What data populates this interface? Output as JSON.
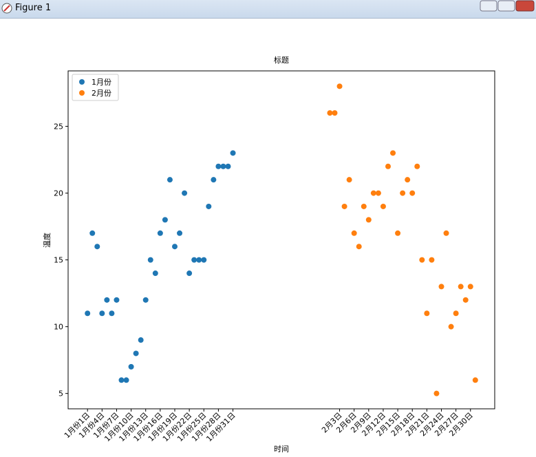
{
  "window_title": "Figure 1",
  "chart_data": {
    "type": "scatter",
    "title": "标题",
    "x_label": "时间",
    "y_label": "温度",
    "xlim": [
      -3,
      85
    ],
    "ylim": [
      3.85,
      29.15
    ],
    "xticks": [
      {
        "value": 1,
        "label": "1月份1日"
      },
      {
        "value": 4,
        "label": "1月份4日"
      },
      {
        "value": 7,
        "label": "1月份7日"
      },
      {
        "value": 10,
        "label": "1月份10日"
      },
      {
        "value": 13,
        "label": "1月份13日"
      },
      {
        "value": 16,
        "label": "1月份16日"
      },
      {
        "value": 19,
        "label": "1月份19日"
      },
      {
        "value": 22,
        "label": "1月份22日"
      },
      {
        "value": 25,
        "label": "1月份25日"
      },
      {
        "value": 28,
        "label": "1月份28日"
      },
      {
        "value": 31,
        "label": "1月份31日"
      },
      {
        "value": 53,
        "label": "2月3日"
      },
      {
        "value": 56,
        "label": "2月6日"
      },
      {
        "value": 59,
        "label": "2月9日"
      },
      {
        "value": 62,
        "label": "2月12日"
      },
      {
        "value": 65,
        "label": "2月15日"
      },
      {
        "value": 68,
        "label": "2月18日"
      },
      {
        "value": 71,
        "label": "2月21日"
      },
      {
        "value": 74,
        "label": "2月24日"
      },
      {
        "value": 77,
        "label": "2月27日"
      },
      {
        "value": 80,
        "label": "2月30日"
      }
    ],
    "yticks": [
      5,
      10,
      15,
      20,
      25
    ],
    "legend": "upper left",
    "series": [
      {
        "name": "1月份",
        "color": "#1f77b4",
        "x": [
          1,
          2,
          3,
          4,
          5,
          6,
          7,
          8,
          9,
          10,
          11,
          12,
          13,
          14,
          15,
          16,
          17,
          18,
          19,
          20,
          21,
          22,
          23,
          24,
          25,
          26,
          27,
          28,
          29,
          30,
          31
        ],
        "values": [
          11,
          17,
          16,
          11,
          12,
          11,
          12,
          6,
          6,
          7,
          8,
          9,
          12,
          15,
          14,
          17,
          18,
          21,
          16,
          17,
          20,
          14,
          15,
          15,
          15,
          19,
          21,
          22,
          22,
          22,
          23
        ]
      },
      {
        "name": "2月份",
        "color": "#ff7f0e",
        "x": [
          51,
          52,
          53,
          54,
          55,
          56,
          57,
          58,
          59,
          60,
          61,
          62,
          63,
          64,
          65,
          66,
          67,
          68,
          69,
          70,
          71,
          72,
          73,
          74,
          75,
          76,
          77,
          78,
          79,
          80,
          81
        ],
        "values": [
          26,
          26,
          28,
          19,
          21,
          17,
          16,
          19,
          18,
          20,
          20,
          19,
          22,
          23,
          17,
          20,
          21,
          20,
          22,
          15,
          11,
          15,
          5,
          13,
          17,
          10,
          11,
          13,
          12,
          13,
          6
        ]
      }
    ]
  }
}
